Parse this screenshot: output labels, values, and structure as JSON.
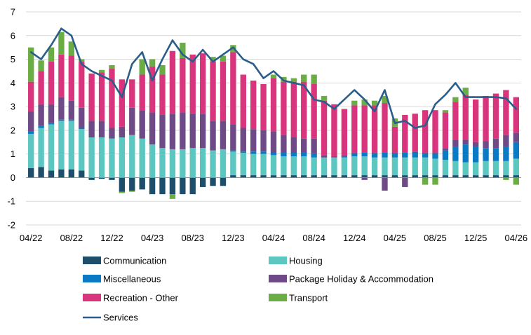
{
  "chart_data": {
    "type": "bar",
    "stacked": true,
    "overlay_line": "Services",
    "x": [
      "04/22",
      "05/22",
      "06/22",
      "07/22",
      "08/22",
      "09/22",
      "10/22",
      "11/22",
      "12/22",
      "01/23",
      "02/23",
      "03/23",
      "04/23",
      "05/23",
      "06/23",
      "07/23",
      "08/23",
      "09/23",
      "10/23",
      "11/23",
      "12/23",
      "01/24",
      "02/24",
      "03/24",
      "04/24",
      "05/24",
      "06/24",
      "07/24",
      "08/24",
      "09/24",
      "10/24",
      "11/24",
      "12/24",
      "01/25",
      "02/25",
      "03/25",
      "04/25",
      "05/25",
      "06/25",
      "07/25",
      "08/25",
      "09/25",
      "10/25",
      "11/25",
      "12/25",
      "01/26",
      "02/26",
      "03/26",
      "04/26"
    ],
    "xtick_labels": [
      "04/22",
      "08/22",
      "12/22",
      "04/23",
      "08/23",
      "12/23",
      "04/24",
      "08/24",
      "12/24",
      "04/25",
      "08/25",
      "12/25",
      "04/26"
    ],
    "ylim": [
      -2,
      7
    ],
    "yticks": [
      -2,
      -1,
      0,
      1,
      2,
      3,
      4,
      5,
      6,
      7
    ],
    "ytick_labels": [
      "-2",
      "-1",
      "0",
      "1",
      "2",
      "3",
      "4",
      "5",
      "6",
      "7"
    ],
    "grid": "horizontal",
    "legend_position": "bottom",
    "series": [
      {
        "name": "Communication",
        "color": "#1f4e6b",
        "kind": "bar",
        "values": [
          0.4,
          0.45,
          0.3,
          0.35,
          0.35,
          0.3,
          -0.1,
          -0.05,
          -0.1,
          -0.6,
          -0.55,
          -0.5,
          -0.7,
          -0.7,
          -0.7,
          -0.7,
          -0.7,
          -0.4,
          -0.35,
          -0.35,
          0.1,
          0.1,
          0.1,
          0.1,
          0.1,
          0.1,
          0.1,
          0.1,
          0.1,
          0.1,
          0.1,
          0.1,
          0.1,
          0.1,
          0.1,
          0.1,
          0.1,
          0.1,
          0.1,
          0.1,
          0.1,
          0.1,
          0.1,
          0.1,
          0.1,
          0.1,
          0.1,
          0.1,
          0.1
        ]
      },
      {
        "name": "Housing",
        "color": "#5cc6c0",
        "kind": "bar",
        "values": [
          1.45,
          1.65,
          1.95,
          2.05,
          2.05,
          1.75,
          1.7,
          1.7,
          1.65,
          1.7,
          1.8,
          1.65,
          1.4,
          1.25,
          1.2,
          1.2,
          1.25,
          1.25,
          1.15,
          1.2,
          1.0,
          0.95,
          0.9,
          0.9,
          0.85,
          0.8,
          0.8,
          0.8,
          0.75,
          0.75,
          0.75,
          0.75,
          0.8,
          0.8,
          0.75,
          0.75,
          0.75,
          0.75,
          0.75,
          0.75,
          0.7,
          0.65,
          0.6,
          0.55,
          0.55,
          0.6,
          0.6,
          0.6,
          0.7
        ]
      },
      {
        "name": "Miscellaneous",
        "color": "#0a7ac4",
        "kind": "bar",
        "values": [
          0.1,
          0.1,
          0.05,
          0.05,
          0.05,
          0.05,
          0.0,
          0.0,
          0.0,
          0.0,
          0.0,
          0.0,
          0.0,
          0.0,
          0.0,
          0.0,
          0.0,
          0.0,
          0.0,
          0.0,
          0.05,
          0.05,
          0.1,
          0.1,
          0.1,
          0.15,
          0.15,
          0.15,
          0.15,
          0.0,
          0.0,
          0.05,
          0.1,
          0.15,
          0.15,
          0.2,
          0.15,
          0.2,
          0.2,
          0.15,
          0.2,
          0.4,
          0.6,
          0.75,
          0.65,
          0.55,
          0.55,
          0.6,
          0.7
        ]
      },
      {
        "name": "Package Holiday & Accommodation",
        "color": "#6e4a86",
        "kind": "bar",
        "values": [
          0.85,
          0.9,
          0.8,
          0.95,
          0.8,
          0.85,
          0.7,
          0.7,
          0.45,
          0.45,
          1.15,
          1.2,
          1.35,
          1.4,
          1.5,
          1.55,
          1.45,
          1.45,
          1.25,
          1.2,
          1.1,
          1.0,
          0.95,
          0.9,
          0.9,
          0.75,
          0.65,
          0.6,
          0.65,
          0.1,
          0.05,
          0.05,
          0.05,
          -0.1,
          0.05,
          -0.55,
          0.05,
          -0.4,
          0.05,
          0.05,
          0.05,
          0.1,
          0.3,
          0.2,
          0.2,
          0.3,
          0.4,
          0.5,
          0.4
        ]
      },
      {
        "name": "Recreation - Other",
        "color": "#d9357c",
        "kind": "bar",
        "values": [
          1.25,
          1.4,
          1.8,
          1.8,
          1.9,
          1.95,
          2.0,
          2.05,
          2.5,
          2.0,
          1.2,
          1.5,
          1.95,
          1.7,
          2.65,
          2.3,
          2.5,
          2.55,
          2.5,
          2.5,
          3.05,
          2.25,
          2.05,
          1.95,
          2.25,
          2.25,
          2.35,
          2.4,
          2.3,
          2.3,
          2.2,
          1.95,
          2.0,
          2.0,
          2.0,
          2.1,
          1.1,
          1.6,
          1.6,
          1.8,
          1.8,
          1.5,
          1.6,
          1.9,
          1.8,
          1.9,
          1.9,
          1.9,
          1.5
        ]
      },
      {
        "name": "Transport",
        "color": "#6aad45",
        "kind": "bar",
        "values": [
          1.45,
          0.45,
          0.6,
          0.95,
          0.6,
          0.1,
          0.0,
          0.1,
          0.15,
          -0.05,
          -0.05,
          0.65,
          0.3,
          0.4,
          -0.2,
          0.65,
          0.0,
          0.0,
          0.2,
          0.25,
          0.3,
          0.0,
          0.0,
          0.0,
          0.15,
          0.2,
          0.15,
          0.3,
          0.4,
          0.2,
          0.0,
          0.0,
          0.2,
          0.25,
          0.2,
          0.3,
          0.35,
          0.0,
          0.0,
          -0.3,
          -0.3,
          0.1,
          0.2,
          0.3,
          0.0,
          0.0,
          0.0,
          -0.1,
          -0.3
        ]
      },
      {
        "name": "Services",
        "color": "#2a5d8a",
        "kind": "line",
        "values": [
          5.3,
          5.0,
          5.6,
          6.3,
          6.0,
          4.8,
          4.5,
          4.3,
          4.1,
          3.4,
          4.8,
          5.3,
          4.1,
          5.0,
          5.8,
          5.2,
          4.9,
          5.4,
          4.9,
          5.2,
          5.5,
          5.0,
          4.8,
          4.2,
          4.5,
          4.1,
          4.0,
          3.9,
          3.3,
          3.2,
          2.9,
          3.3,
          3.7,
          3.3,
          2.8,
          3.7,
          2.3,
          2.4,
          2.1,
          2.2,
          3.1,
          3.5,
          4.0,
          3.4,
          3.4,
          3.4,
          3.4,
          3.35,
          2.9
        ]
      }
    ]
  }
}
